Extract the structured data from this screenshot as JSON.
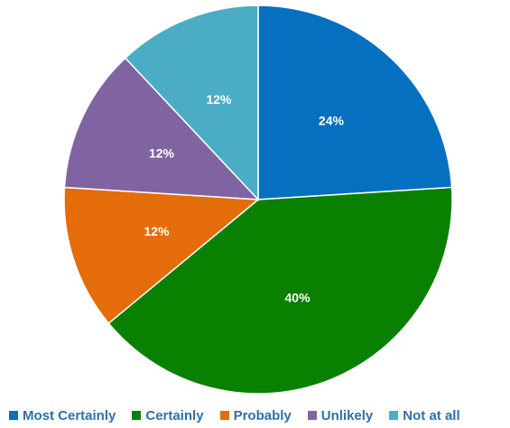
{
  "chart_data": {
    "type": "pie",
    "title": "",
    "categories": [
      "Most Certainly",
      "Certainly",
      "Probably",
      "Unlikely",
      "Not at all"
    ],
    "values": [
      24,
      40,
      12,
      12,
      12
    ],
    "labels": [
      "24%",
      "40%",
      "12%",
      "12%",
      "12%"
    ],
    "colors": [
      "#0570c0",
      "#0a8000",
      "#e46c0a",
      "#8064a2",
      "#4bacc6"
    ],
    "legend_position": "bottom"
  }
}
